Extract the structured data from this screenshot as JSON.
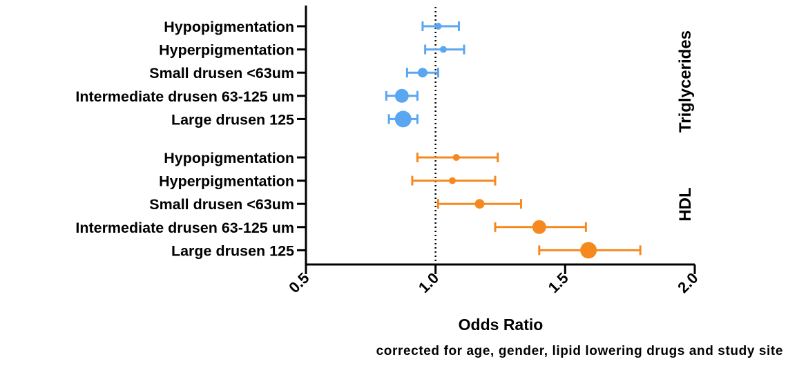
{
  "chart_data": {
    "type": "forest",
    "title": "",
    "xlabel": "Odds Ratio",
    "footnote": "corrected for age, gender, lipid lowering drugs and study site",
    "xlim": [
      0.5,
      2.0
    ],
    "xticks": [
      "0.5",
      "1.0",
      "1.5",
      "2.0"
    ],
    "reference_line": 1.0,
    "groups": [
      {
        "name": "Triglycerides",
        "color": "#5aa6f0",
        "rows": [
          {
            "label": "Hypopigmentation",
            "or": 1.01,
            "lo": 0.95,
            "hi": 1.09,
            "marker": "small"
          },
          {
            "label": "Hyperpigmentation",
            "or": 1.03,
            "lo": 0.96,
            "hi": 1.11,
            "marker": "small"
          },
          {
            "label": "Small drusen <63um",
            "or": 0.95,
            "lo": 0.89,
            "hi": 1.01,
            "marker": "medium"
          },
          {
            "label": "Intermediate drusen 63-125 um",
            "or": 0.87,
            "lo": 0.81,
            "hi": 0.93,
            "marker": "large"
          },
          {
            "label": "Large drusen 125",
            "or": 0.875,
            "lo": 0.82,
            "hi": 0.93,
            "marker": "xlarge"
          }
        ]
      },
      {
        "name": "HDL",
        "color": "#f5891f",
        "rows": [
          {
            "label": "Hypopigmentation",
            "or": 1.08,
            "lo": 0.93,
            "hi": 1.24,
            "marker": "small"
          },
          {
            "label": "Hyperpigmentation",
            "or": 1.065,
            "lo": 0.91,
            "hi": 1.23,
            "marker": "small"
          },
          {
            "label": "Small drusen <63um",
            "or": 1.17,
            "lo": 1.01,
            "hi": 1.33,
            "marker": "medium"
          },
          {
            "label": "Intermediate drusen 63-125 um",
            "or": 1.4,
            "lo": 1.23,
            "hi": 1.58,
            "marker": "large"
          },
          {
            "label": "Large drusen 125",
            "or": 1.59,
            "lo": 1.4,
            "hi": 1.79,
            "marker": "xlarge"
          }
        ]
      }
    ]
  }
}
